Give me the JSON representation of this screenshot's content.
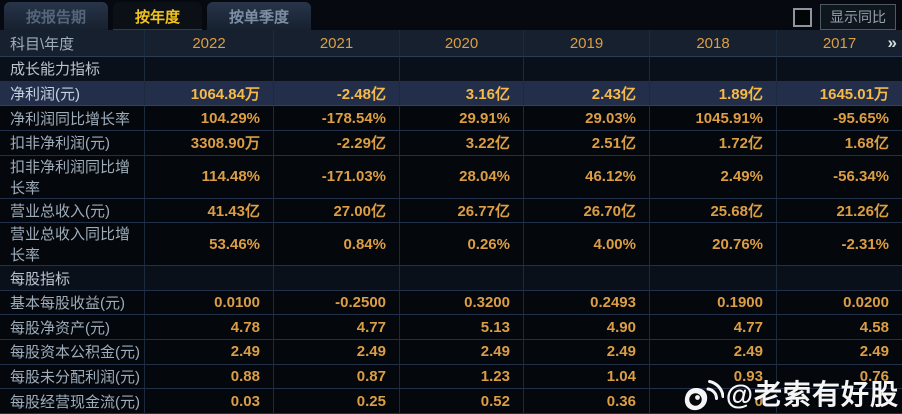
{
  "tabs": [
    {
      "label": "按报告期",
      "active": false
    },
    {
      "label": "按年度",
      "active": true
    },
    {
      "label": "按单季度",
      "active": false
    }
  ],
  "controls": {
    "show_yoy_label": "显示同比",
    "checkbox_checked": false
  },
  "table": {
    "header": {
      "label": "科目\\年度",
      "years": [
        "2022",
        "2021",
        "2020",
        "2019",
        "2018",
        "2017"
      ],
      "more_icon": "»"
    },
    "rows": [
      {
        "type": "section",
        "highlight": false,
        "cells": [
          "成长能力指标",
          "",
          "",
          "",
          "",
          "",
          ""
        ]
      },
      {
        "type": "data",
        "highlight": true,
        "cells": [
          "净利润(元)",
          "1064.84万",
          "-2.48亿",
          "3.16亿",
          "2.43亿",
          "1.89亿",
          "1645.01万"
        ]
      },
      {
        "type": "data",
        "highlight": false,
        "cells": [
          "净利润同比增长率",
          "104.29%",
          "-178.54%",
          "29.91%",
          "29.03%",
          "1045.91%",
          "-95.65%"
        ]
      },
      {
        "type": "data",
        "highlight": false,
        "cells": [
          "扣非净利润(元)",
          "3308.90万",
          "-2.29亿",
          "3.22亿",
          "2.51亿",
          "1.72亿",
          "1.68亿"
        ]
      },
      {
        "type": "data",
        "highlight": false,
        "cells": [
          "扣非净利润同比增长率",
          "114.48%",
          "-171.03%",
          "28.04%",
          "46.12%",
          "2.49%",
          "-56.34%"
        ]
      },
      {
        "type": "data",
        "highlight": false,
        "cells": [
          "营业总收入(元)",
          "41.43亿",
          "27.00亿",
          "26.77亿",
          "26.70亿",
          "25.68亿",
          "21.26亿"
        ]
      },
      {
        "type": "data",
        "highlight": false,
        "cells": [
          "营业总收入同比增长率",
          "53.46%",
          "0.84%",
          "0.26%",
          "4.00%",
          "20.76%",
          "-2.31%"
        ]
      },
      {
        "type": "section",
        "highlight": false,
        "cells": [
          "每股指标",
          "",
          "",
          "",
          "",
          "",
          ""
        ]
      },
      {
        "type": "data",
        "highlight": false,
        "cells": [
          "基本每股收益(元)",
          "0.0100",
          "-0.2500",
          "0.3200",
          "0.2493",
          "0.1900",
          "0.0200"
        ]
      },
      {
        "type": "data",
        "highlight": false,
        "cells": [
          "每股净资产(元)",
          "4.78",
          "4.77",
          "5.13",
          "4.90",
          "4.77",
          "4.58"
        ]
      },
      {
        "type": "data",
        "highlight": false,
        "cells": [
          "每股资本公积金(元)",
          "2.49",
          "2.49",
          "2.49",
          "2.49",
          "2.49",
          "2.49"
        ]
      },
      {
        "type": "data",
        "highlight": false,
        "cells": [
          "每股未分配利润(元)",
          "0.88",
          "0.87",
          "1.23",
          "1.04",
          "0.93",
          "0.76"
        ]
      },
      {
        "type": "data",
        "highlight": false,
        "cells": [
          "每股经营现金流(元)",
          "0.03",
          "0.25",
          "0.52",
          "0.36",
          "0",
          ""
        ]
      }
    ]
  },
  "watermark": {
    "text": "@老索有好股",
    "icon": "weibo-icon"
  },
  "colors": {
    "background": "#04070c",
    "header_bg": "#16202e",
    "highlight_row_bg": "#232f4a",
    "value_gold": "#dc9e44",
    "highlight_gold": "#f5ba47",
    "active_tab_text": "#f2c31d",
    "label_text": "#9fadbb"
  }
}
